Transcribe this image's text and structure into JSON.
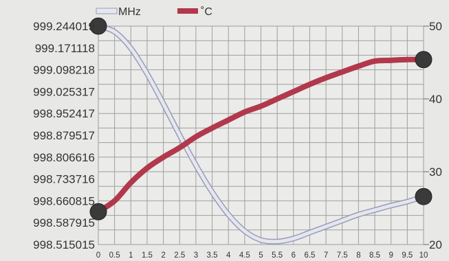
{
  "chart_data": {
    "type": "line",
    "title": "",
    "xlabel": "",
    "ylabel": "",
    "legend_position": "top-left",
    "grid": true,
    "x_ticks": [
      "0",
      "0.5",
      "1",
      "1.5",
      "2",
      "2.5",
      "3",
      "3.5",
      "4",
      "4.5",
      "5",
      "5.5",
      "6",
      "6.5",
      "7",
      "7.5",
      "8",
      "8.5",
      "9",
      "9.5",
      "10"
    ],
    "x_range": [
      0,
      10
    ],
    "y_left": {
      "ticks": [
        "999.244019",
        "999.171118",
        "999.098218",
        "999.025317",
        "998.952417",
        "998.879517",
        "998.806616",
        "998.733716",
        "998.660815",
        "998.587915",
        "998.515015"
      ],
      "range": [
        998.515015,
        999.244019
      ]
    },
    "y_right": {
      "ticks": [
        "50",
        "40",
        "30",
        "20"
      ],
      "range": [
        20,
        50
      ]
    },
    "series": [
      {
        "name": "MHz",
        "axis": "left",
        "color": "#e4e6f0",
        "outline": "#9a9cb2",
        "x": [
          0,
          0.5,
          1,
          1.5,
          2,
          2.5,
          3,
          3.5,
          4,
          4.5,
          5,
          5.5,
          6,
          6.5,
          7,
          7.5,
          8,
          8.5,
          9,
          9.5,
          10
        ],
        "y": [
          999.244019,
          999.225,
          999.17,
          999.085,
          998.985,
          998.88,
          998.78,
          998.69,
          998.615,
          998.56,
          998.53,
          998.525,
          998.535,
          998.555,
          998.575,
          998.595,
          998.615,
          998.63,
          998.645,
          998.658,
          998.675
        ]
      },
      {
        "name": "˚C",
        "axis": "right",
        "color": "#b2384c",
        "x": [
          0,
          0.5,
          1,
          1.5,
          2,
          2.5,
          3,
          3.5,
          4,
          4.5,
          5,
          5.5,
          6,
          6.5,
          7,
          7.5,
          8,
          8.5,
          9,
          9.5,
          10
        ],
        "y": [
          24.5,
          26.0,
          28.5,
          30.5,
          32.0,
          33.3,
          34.8,
          36.0,
          37.1,
          38.2,
          39.0,
          40.0,
          41.0,
          42.0,
          42.9,
          43.7,
          44.5,
          45.2,
          45.3,
          45.4,
          45.4
        ]
      }
    ],
    "markers": [
      {
        "series": "MHz",
        "x": 0
      },
      {
        "series": "MHz",
        "x": 10
      },
      {
        "series": "˚C",
        "x": 0
      },
      {
        "series": "˚C",
        "x": 10
      }
    ]
  }
}
